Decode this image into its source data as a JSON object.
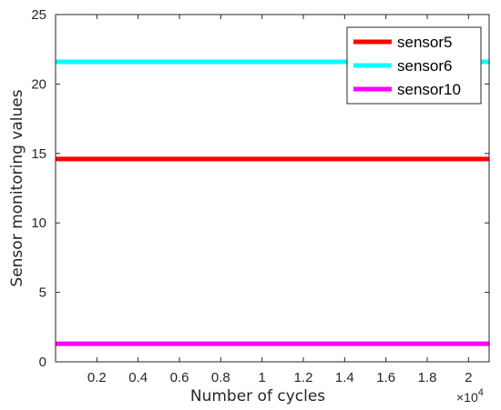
{
  "chart_data": {
    "type": "line",
    "xlabel": "Number of cycles",
    "ylabel": "Sensor monitoring values",
    "x_exponent_base": "×10",
    "x_exponent_power": "4",
    "xlim": [
      0,
      2.1
    ],
    "ylim": [
      0,
      25
    ],
    "x_ticks": [
      0.2,
      0.4,
      0.6,
      0.8,
      1,
      1.2,
      1.4,
      1.6,
      1.8,
      2
    ],
    "x_tick_labels": [
      "0.2",
      "0.4",
      "0.6",
      "0.8",
      "1",
      "1.2",
      "1.4",
      "1.6",
      "1.8",
      "2"
    ],
    "y_ticks": [
      0,
      5,
      10,
      15,
      20,
      25
    ],
    "y_tick_labels": [
      "0",
      "5",
      "10",
      "15",
      "20",
      "25"
    ],
    "grid": false,
    "legend_position": "top-right",
    "series": [
      {
        "name": "sensor5",
        "color": "#ff0000",
        "x": [
          0,
          2.1
        ],
        "values": [
          14.6,
          14.6
        ]
      },
      {
        "name": "sensor6",
        "color": "#00ffff",
        "x": [
          0,
          2.1
        ],
        "values": [
          21.6,
          21.6
        ]
      },
      {
        "name": "sensor10",
        "color": "#ff00ff",
        "x": [
          0,
          2.1
        ],
        "values": [
          1.3,
          1.3
        ]
      }
    ]
  }
}
